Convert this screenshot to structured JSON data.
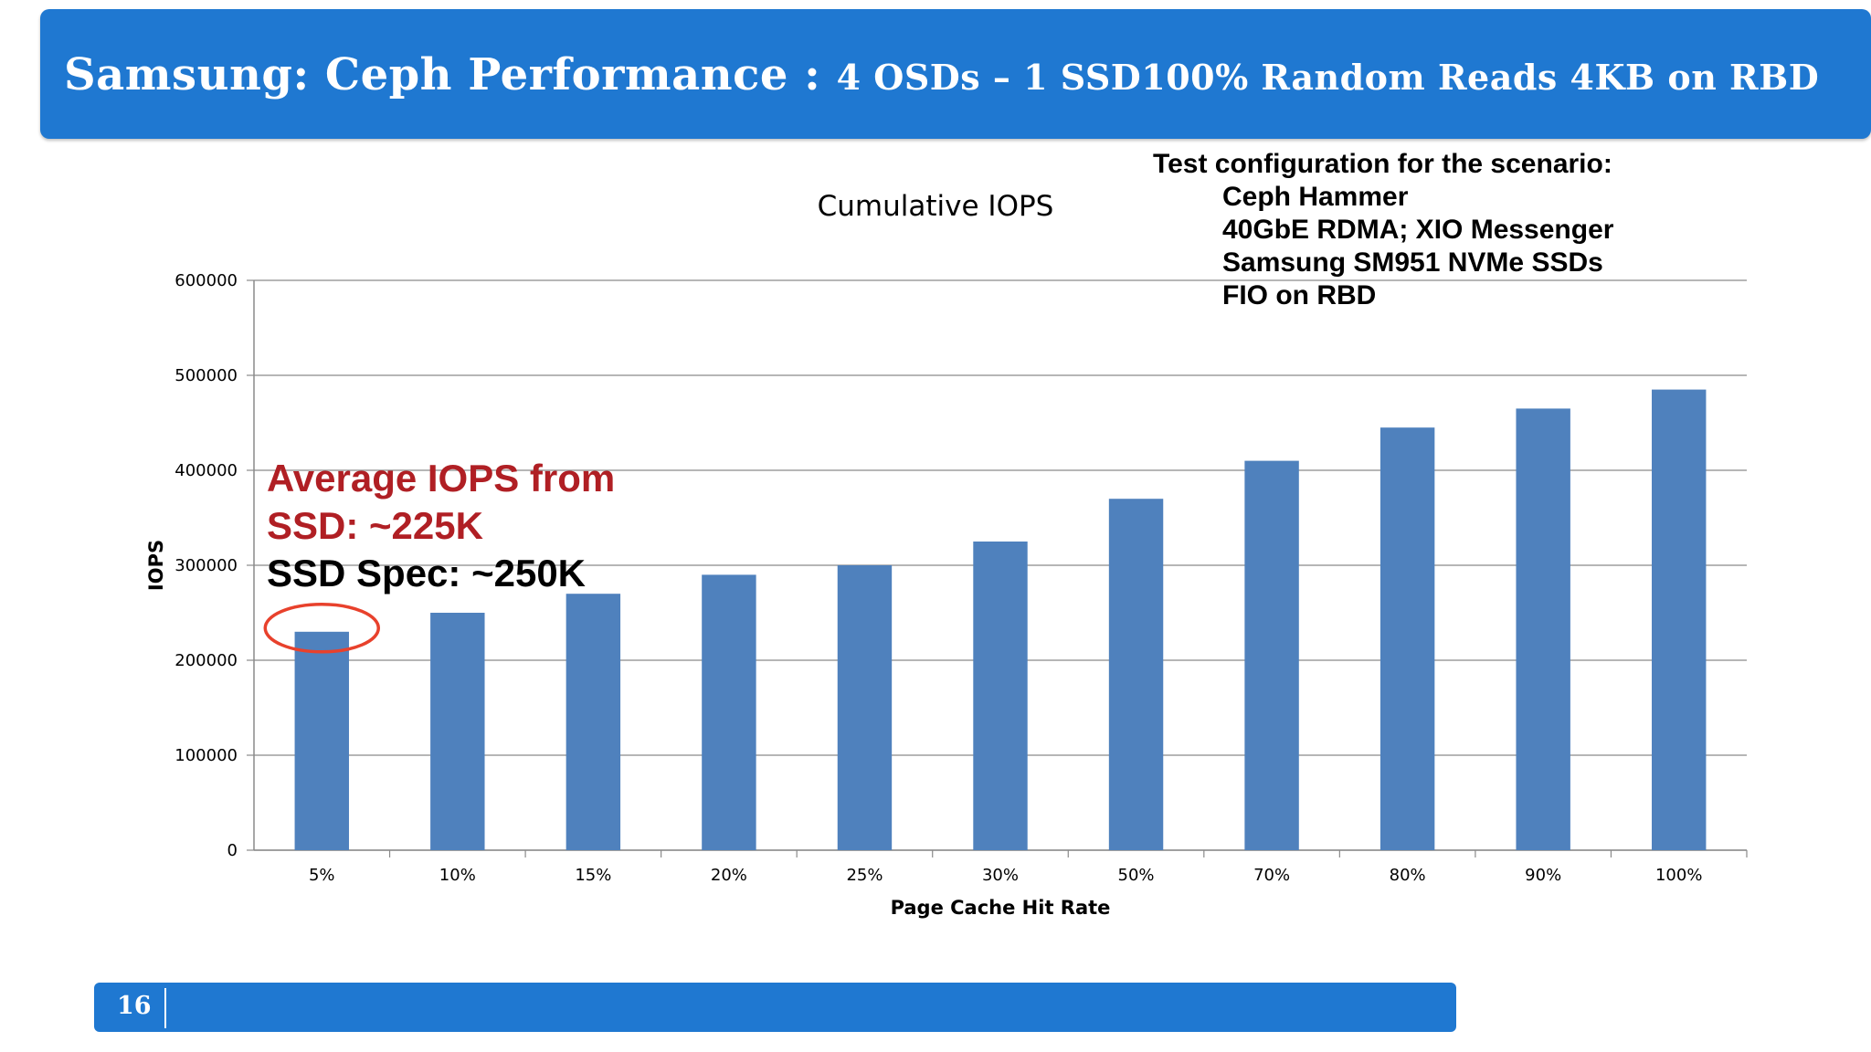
{
  "slide": {
    "title_main": "Samsung: Ceph Performance : ",
    "title_sub": "4 OSDs – 1 SSD100% Random Reads 4KB on RBD",
    "page_number": "16",
    "colors": {
      "header": "#1f78d1",
      "bar": "#4f81bd",
      "highlight": "#e8412c",
      "annotation_red": "#b01f24"
    }
  },
  "config": {
    "heading": "Test configuration for the scenario:",
    "lines": [
      "Ceph Hammer",
      "40GbE RDMA; XIO Messenger",
      "Samsung SM951 NVMe SSDs",
      "FIO on RBD"
    ]
  },
  "annotation": {
    "line1": "Average IOPS from",
    "line2": "SSD: ~225K",
    "line3": "SSD Spec: ~250K"
  },
  "chart_data": {
    "type": "bar",
    "title": "Cumulative IOPS",
    "xlabel": "Page Cache Hit Rate",
    "ylabel": "IOPS",
    "categories": [
      "5%",
      "10%",
      "15%",
      "20%",
      "25%",
      "30%",
      "50%",
      "70%",
      "80%",
      "90%",
      "100%"
    ],
    "values": [
      230000,
      250000,
      270000,
      290000,
      300000,
      325000,
      370000,
      410000,
      445000,
      465000,
      485000
    ],
    "ylim": [
      0,
      600000
    ],
    "yticks": [
      "0",
      "100000",
      "200000",
      "300000",
      "400000",
      "500000",
      "600000"
    ],
    "grid": true,
    "highlighted_category": "5%"
  }
}
